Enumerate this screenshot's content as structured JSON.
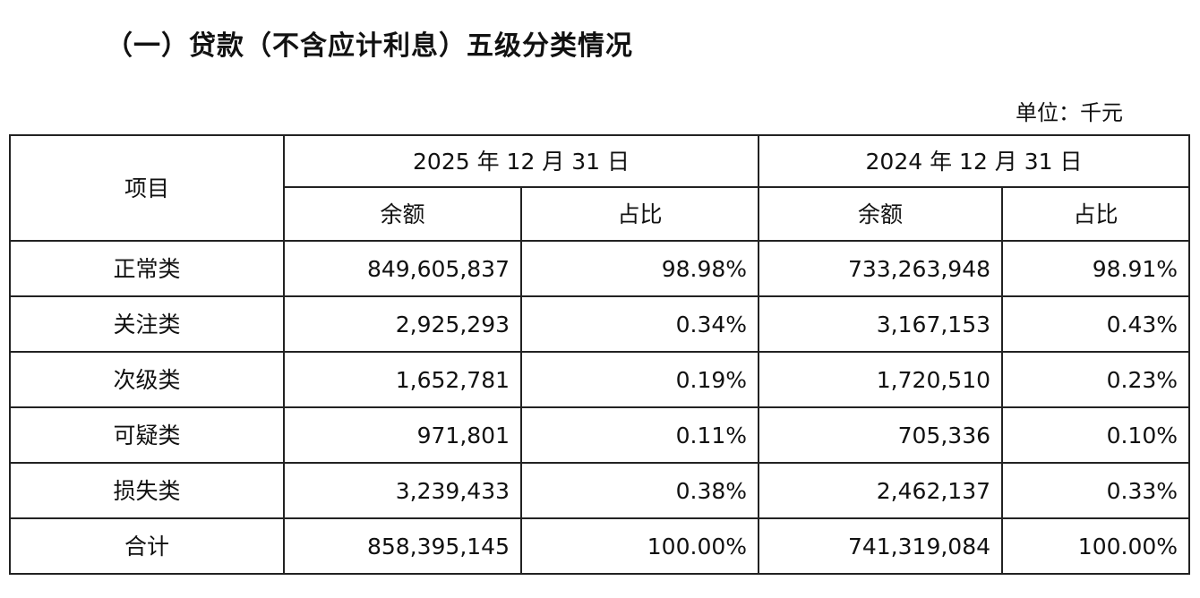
{
  "title": "（一）贷款（不含应计利息）五级分类情况",
  "unit": "单位：千元",
  "table": {
    "item_header": "项目",
    "periods": [
      "2025 年 12 月 31 日",
      "2024 年 12 月 31 日"
    ],
    "subheaders": [
      "余额",
      "占比",
      "余额",
      "占比"
    ],
    "rows": [
      {
        "item": "正常类",
        "bal_2025": "849,605,837",
        "pct_2025": "98.98%",
        "bal_2024": "733,263,948",
        "pct_2024": "98.91%"
      },
      {
        "item": "关注类",
        "bal_2025": "2,925,293",
        "pct_2025": "0.34%",
        "bal_2024": "3,167,153",
        "pct_2024": "0.43%"
      },
      {
        "item": "次级类",
        "bal_2025": "1,652,781",
        "pct_2025": "0.19%",
        "bal_2024": "1,720,510",
        "pct_2024": "0.23%"
      },
      {
        "item": "可疑类",
        "bal_2025": "971,801",
        "pct_2025": "0.11%",
        "bal_2024": "705,336",
        "pct_2024": "0.10%"
      },
      {
        "item": "损失类",
        "bal_2025": "3,239,433",
        "pct_2025": "0.38%",
        "bal_2024": "2,462,137",
        "pct_2024": "0.33%"
      },
      {
        "item": "合计",
        "bal_2025": "858,395,145",
        "pct_2025": "100.00%",
        "bal_2024": "741,319,084",
        "pct_2024": "100.00%"
      }
    ]
  }
}
